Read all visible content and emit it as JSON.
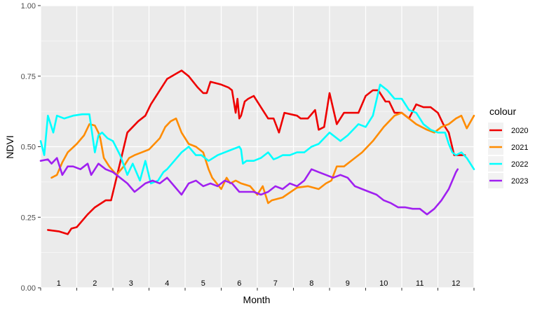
{
  "chart_data": {
    "type": "line",
    "title": "",
    "xlabel": "Month",
    "ylabel": "NDVI",
    "ylim": [
      0,
      1
    ],
    "xlim": [
      0.5,
      12.5
    ],
    "y_ticks": [
      "0.00",
      "0.25",
      "0.50",
      "0.75",
      "1.00"
    ],
    "y_tick_values": [
      0,
      0.25,
      0.5,
      0.75,
      1.0
    ],
    "x_ticks": [
      "1",
      "2",
      "3",
      "4",
      "5",
      "6",
      "7",
      "8",
      "9",
      "10",
      "11",
      "12"
    ],
    "grid": true,
    "legend": {
      "title": "colour",
      "position": "right"
    },
    "colors": {
      "panel": "#EBEBEB",
      "grid": "#FFFFFF",
      "axis_text": "#4D4D4D"
    },
    "series": [
      {
        "name": "2020",
        "color": "#EE0000",
        "x": [
          0.7,
          1.0,
          1.25,
          1.35,
          1.5,
          1.8,
          2.0,
          2.3,
          2.45,
          2.6,
          2.75,
          2.9,
          3.2,
          3.4,
          3.55,
          3.7,
          4.0,
          4.4,
          4.6,
          4.85,
          5.0,
          5.1,
          5.2,
          5.5,
          5.7,
          5.8,
          5.9,
          5.95,
          6.0,
          6.05,
          6.15,
          6.25,
          6.4,
          6.6,
          6.8,
          6.95,
          7.1,
          7.25,
          7.6,
          7.7,
          7.8,
          7.9,
          8.1,
          8.2,
          8.35,
          8.5,
          8.7,
          8.9,
          9.3,
          9.5,
          9.7,
          9.85,
          9.95,
          10.05,
          10.15,
          10.3,
          10.5,
          10.7,
          10.9,
          11.1,
          11.3,
          11.5,
          11.65,
          11.7,
          11.8,
          11.95,
          12.1,
          12.25
        ],
        "values": [
          0.205,
          0.2,
          0.19,
          0.21,
          0.215,
          0.26,
          0.285,
          0.31,
          0.31,
          0.39,
          0.47,
          0.55,
          0.59,
          0.61,
          0.65,
          0.68,
          0.74,
          0.77,
          0.75,
          0.71,
          0.69,
          0.69,
          0.73,
          0.72,
          0.71,
          0.7,
          0.62,
          0.67,
          0.6,
          0.61,
          0.66,
          0.67,
          0.68,
          0.64,
          0.6,
          0.6,
          0.55,
          0.62,
          0.61,
          0.6,
          0.6,
          0.6,
          0.63,
          0.56,
          0.57,
          0.69,
          0.58,
          0.62,
          0.62,
          0.68,
          0.7,
          0.7,
          0.68,
          0.66,
          0.66,
          0.62,
          0.62,
          0.6,
          0.65,
          0.64,
          0.64,
          0.62,
          0.58,
          0.57,
          0.55,
          0.47,
          0.47,
          0.47
        ]
      },
      {
        "name": "2021",
        "color": "#FF8C00",
        "x": [
          0.8,
          0.95,
          1.1,
          1.25,
          1.5,
          1.7,
          1.85,
          2.0,
          2.1,
          2.15,
          2.25,
          2.4,
          2.6,
          2.8,
          2.95,
          3.1,
          3.3,
          3.5,
          3.65,
          3.8,
          3.95,
          4.1,
          4.25,
          4.4,
          4.6,
          4.8,
          5.0,
          5.15,
          5.25,
          5.5,
          5.65,
          5.75,
          5.9,
          6.05,
          6.3,
          6.5,
          6.65,
          6.8,
          6.9,
          7.2,
          7.6,
          7.9,
          8.2,
          8.4,
          8.55,
          8.7,
          8.9,
          9.2,
          9.4,
          9.7,
          10.0,
          10.3,
          10.5,
          10.7,
          10.9,
          11.2,
          11.4,
          11.6,
          11.8,
          12.0,
          12.15,
          12.3,
          12.5
        ],
        "values": [
          0.39,
          0.4,
          0.445,
          0.48,
          0.51,
          0.54,
          0.58,
          0.575,
          0.55,
          0.53,
          0.46,
          0.43,
          0.4,
          0.43,
          0.46,
          0.47,
          0.48,
          0.49,
          0.51,
          0.53,
          0.57,
          0.59,
          0.6,
          0.55,
          0.51,
          0.5,
          0.48,
          0.42,
          0.39,
          0.35,
          0.39,
          0.37,
          0.38,
          0.37,
          0.36,
          0.33,
          0.36,
          0.3,
          0.31,
          0.32,
          0.355,
          0.36,
          0.35,
          0.37,
          0.38,
          0.43,
          0.43,
          0.46,
          0.48,
          0.52,
          0.57,
          0.61,
          0.62,
          0.6,
          0.58,
          0.56,
          0.55,
          0.57,
          0.58,
          0.6,
          0.61,
          0.565,
          0.61
        ]
      },
      {
        "name": "2022",
        "color": "#00FFFF",
        "x": [
          0.5,
          0.6,
          0.7,
          0.85,
          0.95,
          1.15,
          1.4,
          1.65,
          1.85,
          2.0,
          2.1,
          2.2,
          2.35,
          2.5,
          2.7,
          2.9,
          3.05,
          3.25,
          3.4,
          3.55,
          3.75,
          3.9,
          4.0,
          4.2,
          4.4,
          4.6,
          4.8,
          4.95,
          5.15,
          5.4,
          5.6,
          5.8,
          6.0,
          6.05,
          6.1,
          6.2,
          6.4,
          6.6,
          6.8,
          6.95,
          7.05,
          7.2,
          7.4,
          7.6,
          7.8,
          8.0,
          8.2,
          8.5,
          8.8,
          9.0,
          9.3,
          9.5,
          9.7,
          9.9,
          10.1,
          10.3,
          10.5,
          10.7,
          10.9,
          11.0,
          11.1,
          11.3,
          11.5,
          11.7,
          11.8,
          11.9,
          12.0,
          12.15,
          12.3,
          12.5
        ],
        "values": [
          0.52,
          0.47,
          0.61,
          0.55,
          0.61,
          0.6,
          0.61,
          0.615,
          0.615,
          0.48,
          0.54,
          0.55,
          0.53,
          0.52,
          0.47,
          0.4,
          0.44,
          0.38,
          0.45,
          0.37,
          0.38,
          0.41,
          0.42,
          0.45,
          0.48,
          0.5,
          0.47,
          0.47,
          0.45,
          0.47,
          0.48,
          0.49,
          0.5,
          0.49,
          0.44,
          0.45,
          0.45,
          0.46,
          0.48,
          0.455,
          0.46,
          0.47,
          0.47,
          0.48,
          0.48,
          0.5,
          0.51,
          0.55,
          0.52,
          0.54,
          0.58,
          0.57,
          0.61,
          0.72,
          0.7,
          0.67,
          0.67,
          0.63,
          0.62,
          0.6,
          0.58,
          0.56,
          0.55,
          0.55,
          0.51,
          0.48,
          0.47,
          0.48,
          0.46,
          0.42
        ]
      },
      {
        "name": "2023",
        "color": "#A020F0",
        "x": [
          0.5,
          0.7,
          0.8,
          0.95,
          1.1,
          1.25,
          1.4,
          1.6,
          1.8,
          1.9,
          2.1,
          2.3,
          2.5,
          2.7,
          2.9,
          3.1,
          3.2,
          3.4,
          3.6,
          3.8,
          4.0,
          4.2,
          4.4,
          4.6,
          4.8,
          5.0,
          5.2,
          5.4,
          5.6,
          5.8,
          6.0,
          6.2,
          6.4,
          6.6,
          6.8,
          7.0,
          7.2,
          7.4,
          7.6,
          7.8,
          8.0,
          8.2,
          8.4,
          8.6,
          8.8,
          9.0,
          9.2,
          9.4,
          9.6,
          9.8,
          10.0,
          10.2,
          10.4,
          10.6,
          10.8,
          11.0,
          11.2,
          11.4,
          11.6,
          11.8,
          12.0,
          12.05
        ],
        "values": [
          0.45,
          0.455,
          0.44,
          0.46,
          0.4,
          0.43,
          0.43,
          0.42,
          0.44,
          0.4,
          0.44,
          0.42,
          0.41,
          0.39,
          0.37,
          0.34,
          0.35,
          0.37,
          0.38,
          0.37,
          0.39,
          0.36,
          0.33,
          0.37,
          0.38,
          0.36,
          0.37,
          0.36,
          0.38,
          0.37,
          0.34,
          0.34,
          0.34,
          0.33,
          0.34,
          0.36,
          0.35,
          0.37,
          0.36,
          0.38,
          0.42,
          0.41,
          0.4,
          0.39,
          0.4,
          0.39,
          0.36,
          0.35,
          0.34,
          0.33,
          0.31,
          0.3,
          0.285,
          0.285,
          0.28,
          0.28,
          0.26,
          0.28,
          0.31,
          0.35,
          0.41,
          0.42
        ]
      }
    ]
  }
}
